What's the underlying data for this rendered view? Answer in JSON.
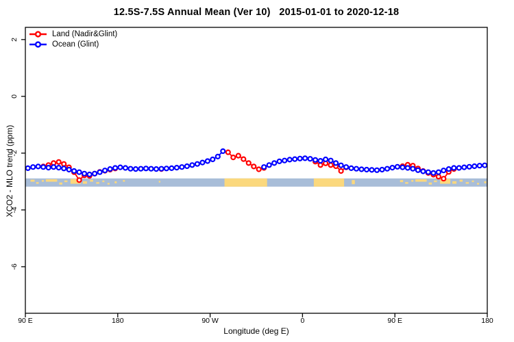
{
  "title": "12.5S-7.5S Annual Mean (Ver 10)   2015-01-01 to 2020-12-18",
  "axes": {
    "x_label": "Longitude (deg E)",
    "y_label": "XCO2 - MLO trend (ppm)",
    "x_ticks": [
      {
        "value": 90,
        "label": "90 E"
      },
      {
        "value": 180,
        "label": "180"
      },
      {
        "value": 270,
        "label": "90 W"
      },
      {
        "value": 360,
        "label": "0"
      },
      {
        "value": 450,
        "label": "90 E"
      },
      {
        "value": 540,
        "label": "180"
      }
    ],
    "y_ticks": [
      {
        "value": 2,
        "label": "2"
      },
      {
        "value": 0,
        "label": "0"
      },
      {
        "value": -2,
        "label": "-2"
      },
      {
        "value": -4,
        "label": "-4"
      },
      {
        "value": -6,
        "label": "-6"
      }
    ]
  },
  "legend": [
    {
      "label": "Land (Nadir&Glint)",
      "color": "#ff0000"
    },
    {
      "label": "Ocean (Glint)",
      "color": "#0000ff"
    }
  ],
  "chart_data": {
    "type": "line",
    "title": "12.5S-7.5S Annual Mean (Ver 10)   2015-01-01 to 2020-12-18",
    "xlabel": "Longitude (deg E)",
    "ylabel": "XCO2 - MLO trend (ppm)",
    "xlim": [
      90,
      540
    ],
    "ylim": [
      -7.64,
      2.43
    ],
    "grid": false,
    "legend_position": "top-left",
    "marker": "open-circle",
    "x": [
      92.5,
      97.5,
      102.5,
      107.5,
      112.5,
      117.5,
      122.5,
      127.5,
      132.5,
      137.5,
      142.5,
      147.5,
      152.5,
      157.5,
      162.5,
      167.5,
      172.5,
      177.5,
      182.5,
      187.5,
      192.5,
      197.5,
      202.5,
      207.5,
      212.5,
      217.5,
      222.5,
      227.5,
      232.5,
      237.5,
      242.5,
      247.5,
      252.5,
      257.5,
      262.5,
      267.5,
      272.5,
      277.5,
      282.5,
      287.5,
      292.5,
      297.5,
      302.5,
      307.5,
      312.5,
      317.5,
      322.5,
      327.5,
      332.5,
      337.5,
      342.5,
      347.5,
      352.5,
      357.5,
      362.5,
      367.5,
      372.5,
      377.5,
      382.5,
      387.5,
      392.5,
      397.5,
      402.5,
      407.5,
      412.5,
      417.5,
      422.5,
      427.5,
      432.5,
      437.5,
      442.5,
      447.5,
      452.5,
      457.5,
      462.5,
      467.5,
      472.5,
      477.5,
      482.5,
      487.5,
      492.5,
      497.5,
      502.5,
      507.5,
      512.5,
      517.5,
      522.5,
      527.5,
      532.5,
      537.5
    ],
    "series": [
      {
        "name": "Land (Nadir&Glint)",
        "color": "#ff0000",
        "values": [
          null,
          null,
          null,
          -2.47,
          -2.42,
          -2.35,
          -2.31,
          -2.38,
          -2.5,
          -2.67,
          -2.95,
          -2.78,
          -2.8,
          -2.72,
          -2.66,
          -2.62,
          -2.58,
          -2.54,
          null,
          null,
          null,
          null,
          null,
          null,
          null,
          null,
          -2.56,
          null,
          null,
          null,
          null,
          null,
          null,
          null,
          null,
          null,
          null,
          null,
          null,
          -1.97,
          -2.15,
          -2.09,
          -2.21,
          -2.35,
          -2.47,
          -2.57,
          -2.52,
          null,
          null,
          null,
          null,
          null,
          null,
          null,
          null,
          null,
          -2.3,
          -2.42,
          -2.36,
          -2.42,
          -2.46,
          -2.63,
          -2.5,
          null,
          null,
          null,
          null,
          null,
          null,
          null,
          null,
          null,
          null,
          -2.46,
          -2.41,
          -2.44,
          -2.54,
          -2.63,
          -2.7,
          -2.76,
          -2.83,
          -2.9,
          -2.66,
          -2.56,
          null,
          null,
          null,
          null,
          null,
          null
        ]
      },
      {
        "name": "Ocean (Glint)",
        "color": "#0000ff",
        "values": [
          -2.53,
          -2.49,
          -2.47,
          -2.49,
          -2.51,
          -2.49,
          -2.51,
          -2.54,
          -2.58,
          -2.63,
          -2.67,
          -2.72,
          -2.75,
          -2.72,
          -2.67,
          -2.61,
          -2.56,
          -2.52,
          -2.5,
          -2.52,
          -2.55,
          -2.56,
          -2.55,
          -2.54,
          -2.55,
          -2.56,
          -2.55,
          -2.54,
          -2.53,
          -2.51,
          -2.49,
          -2.46,
          -2.42,
          -2.38,
          -2.33,
          -2.28,
          -2.22,
          -2.12,
          -1.93,
          null,
          null,
          null,
          null,
          null,
          null,
          null,
          -2.49,
          -2.42,
          -2.35,
          -2.29,
          -2.26,
          -2.23,
          -2.21,
          -2.19,
          -2.18,
          -2.2,
          -2.24,
          -2.27,
          -2.22,
          -2.26,
          -2.35,
          -2.43,
          -2.49,
          -2.53,
          -2.55,
          -2.57,
          -2.58,
          -2.59,
          -2.6,
          -2.58,
          -2.55,
          -2.51,
          -2.48,
          -2.5,
          -2.52,
          -2.55,
          -2.6,
          -2.64,
          -2.67,
          -2.7,
          -2.67,
          -2.61,
          -2.56,
          -2.52,
          -2.52,
          -2.5,
          -2.48,
          -2.46,
          -2.44,
          -2.43
        ]
      }
    ],
    "map_band": {
      "description": "land/ocean strip for latitude band",
      "y_range": [
        -3.18,
        -2.89
      ],
      "ocean_color": "#a8bdd8",
      "land_color": "#fbd87d",
      "land_solid": [
        [
          284,
          325.5
        ],
        [
          371,
          400.5
        ]
      ],
      "land_flecks": [
        [
          95,
          99,
          0.15,
          0.25
        ],
        [
          100.5,
          103,
          0.45,
          0.2
        ],
        [
          106,
          108,
          0.2,
          0.2
        ],
        [
          110,
          121,
          0.1,
          0.3
        ],
        [
          123,
          126,
          0.5,
          0.25
        ],
        [
          128,
          131,
          0.25,
          0.2
        ],
        [
          134,
          144,
          0.05,
          0.6
        ],
        [
          146,
          150,
          0.35,
          0.3
        ],
        [
          153,
          156,
          0.15,
          0.25
        ],
        [
          159,
          162,
          0.45,
          0.2
        ],
        [
          165,
          167,
          0.25,
          0.2
        ],
        [
          170,
          172,
          0.55,
          0.2
        ],
        [
          177,
          179,
          0.35,
          0.25
        ],
        [
          185,
          187,
          0.2,
          0.2
        ],
        [
          220,
          221.5,
          0.3,
          0.2
        ],
        [
          408,
          411,
          0.2,
          0.5
        ],
        [
          455,
          458,
          0.2,
          0.25
        ],
        [
          460,
          463,
          0.45,
          0.2
        ],
        [
          466,
          468,
          0.2,
          0.2
        ],
        [
          470,
          481,
          0.1,
          0.3
        ],
        [
          483,
          486,
          0.5,
          0.25
        ],
        [
          488,
          491,
          0.25,
          0.2
        ],
        [
          494,
          504,
          0.05,
          0.6
        ],
        [
          506,
          510,
          0.35,
          0.3
        ],
        [
          513,
          516,
          0.15,
          0.25
        ],
        [
          519,
          522,
          0.45,
          0.2
        ],
        [
          525,
          527,
          0.25,
          0.2
        ],
        [
          530,
          532,
          0.55,
          0.2
        ],
        [
          537,
          539,
          0.35,
          0.25
        ]
      ]
    }
  }
}
